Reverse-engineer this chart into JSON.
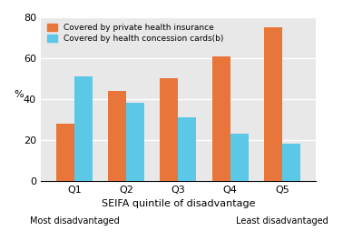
{
  "categories": [
    "Q1",
    "Q2",
    "Q3",
    "Q4",
    "Q5"
  ],
  "x_labels_top": [
    "Q1",
    "Q2",
    "Q3",
    "Q4",
    "Q5"
  ],
  "x_labels_bottom": [
    "Most disadvantaged",
    "",
    "",
    "",
    "Least disadvantaged"
  ],
  "private_insurance": [
    28,
    44,
    50,
    61,
    75
  ],
  "concession_cards": [
    51,
    38,
    31,
    23,
    18
  ],
  "bar_color_insurance": "#E8763A",
  "bar_color_concession": "#5BC8E8",
  "ylabel": "%",
  "xlabel": "SEIFA quintile of disadvantage",
  "ylim": [
    0,
    80
  ],
  "yticks": [
    0,
    20,
    40,
    60,
    80
  ],
  "legend_labels": [
    "Covered by private health insurance",
    "Covered by health concession cards(b)"
  ],
  "grid_color": "white",
  "background_color": "#E8E8E8",
  "bar_width": 0.35
}
